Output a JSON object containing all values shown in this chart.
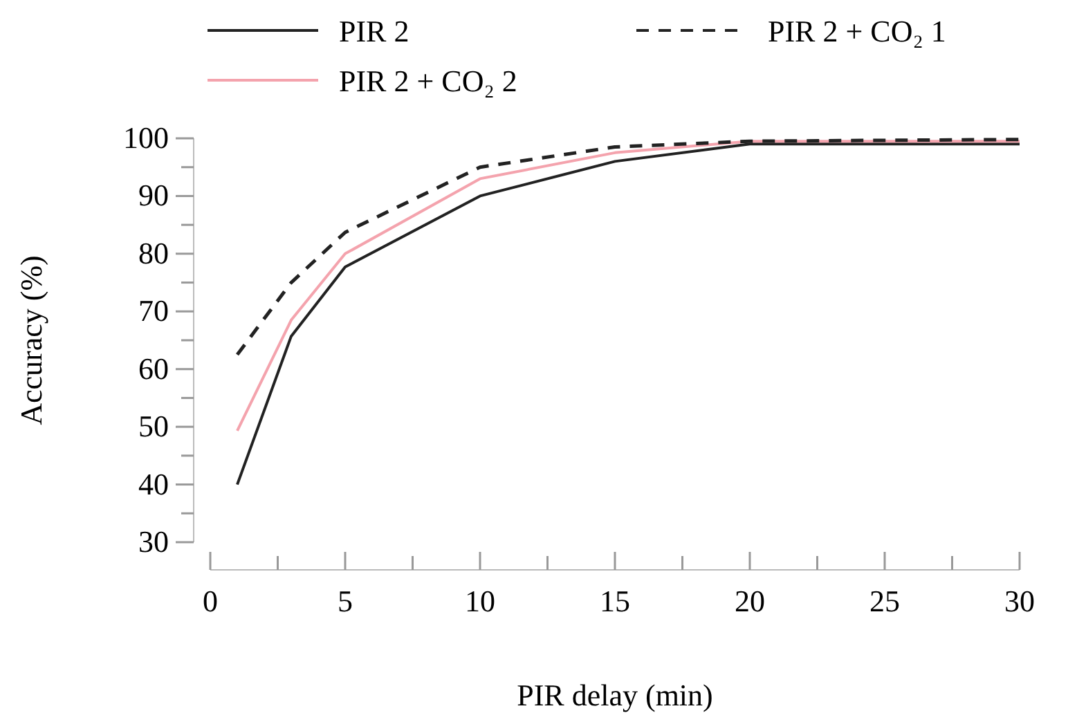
{
  "chart_data": {
    "type": "line",
    "xlabel": "PIR delay (min)",
    "ylabel": "Accuracy (%)",
    "x": [
      1,
      3,
      5,
      10,
      15,
      20,
      30
    ],
    "series": [
      {
        "name": "PIR 2",
        "color": "#222222",
        "line_style": "solid",
        "values": [
          40,
          65.7,
          77.7,
          90,
          96,
          99,
          99
        ]
      },
      {
        "name": "PIR 2 + CO₂ 2",
        "color": "#f4a3ad",
        "line_style": "solid",
        "values": [
          49.3,
          68.5,
          80,
          93,
          97.5,
          99.5,
          99.5
        ]
      },
      {
        "name": "PIR 2 + CO₂ 1",
        "color": "#222222",
        "line_style": "dashed",
        "values": [
          62.5,
          75,
          83.7,
          95,
          98.5,
          99.5,
          99.8
        ]
      }
    ],
    "xlim": [
      0,
      30
    ],
    "ylim": [
      30,
      100
    ],
    "xticks": [
      0,
      {
        "value": 2.5,
        "label": null
      },
      5,
      {
        "value": 7.5,
        "label": null
      },
      10,
      {
        "value": 12.5,
        "label": null
      },
      15,
      {
        "value": 17.5,
        "label": null
      },
      20,
      {
        "value": 22.5,
        "label": null
      },
      25,
      {
        "value": 27.5,
        "label": null
      },
      30
    ],
    "yticks": [
      30,
      {
        "value": 35,
        "label": null
      },
      40,
      {
        "value": 45,
        "label": null
      },
      50,
      {
        "value": 55,
        "label": null
      },
      60,
      {
        "value": 65,
        "label": null
      },
      70,
      {
        "value": 75,
        "label": null
      },
      80,
      {
        "value": 85,
        "label": null
      },
      90,
      {
        "value": 95,
        "label": null
      },
      100
    ],
    "grid": false,
    "legend": "top",
    "marker": "none"
  }
}
